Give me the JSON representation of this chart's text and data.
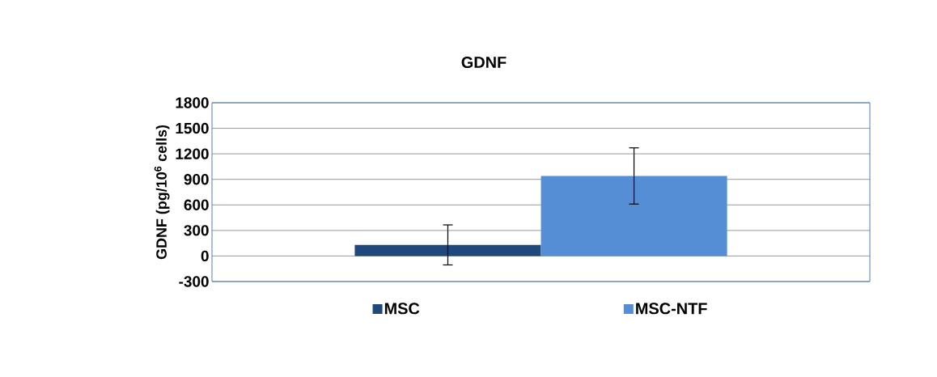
{
  "chart_data": {
    "type": "bar",
    "title": "GDNF",
    "ylabel": "GDNF (pg/10$^{6}$ cells)",
    "categories": [
      null
    ],
    "series": [
      {
        "name": "MSC",
        "color": "#1f497d",
        "values": [
          130
        ],
        "errors": [
          235
        ]
      },
      {
        "name": "MSC-NTF",
        "color": "#558ed5",
        "values": [
          940
        ],
        "errors": [
          330
        ]
      }
    ],
    "ylim": [
      -300,
      1800
    ],
    "yticks": [
      -300,
      0,
      300,
      600,
      900,
      1200,
      1500,
      1800
    ],
    "grid": "y",
    "legend": "bottom"
  }
}
